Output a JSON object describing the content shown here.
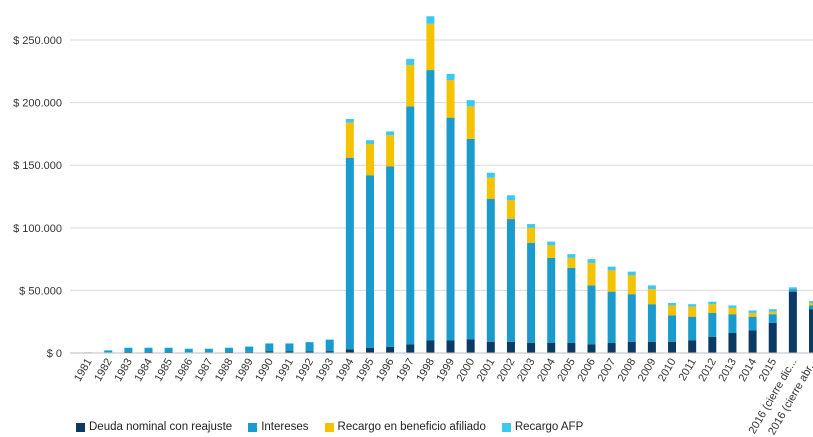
{
  "chart_data": {
    "type": "bar",
    "stacked": true,
    "categories": [
      "1981",
      "1982",
      "1983",
      "1984",
      "1985",
      "1986",
      "1987",
      "1988",
      "1989",
      "1990",
      "1991",
      "1992",
      "1993",
      "1994",
      "1995",
      "1996",
      "1997",
      "1998",
      "1999",
      "2000",
      "2001",
      "2002",
      "2003",
      "2004",
      "2005",
      "2006",
      "2007",
      "2008",
      "2009",
      "2010",
      "2011",
      "2012",
      "2013",
      "2014",
      "2015",
      "2016 (cierre dic...",
      "2016 (cierre abr..."
    ],
    "series": [
      {
        "name": "Deuda nominal con reajuste",
        "color": "#0b3a63",
        "values": [
          0,
          500,
          800,
          800,
          800,
          600,
          600,
          800,
          1000,
          1200,
          1200,
          1300,
          1500,
          3000,
          4000,
          5000,
          7000,
          10000,
          10000,
          11000,
          9000,
          9000,
          8000,
          8000,
          8000,
          7000,
          8000,
          9000,
          9000,
          9000,
          10000,
          13000,
          16000,
          18000,
          24000,
          49000,
          35000
        ]
      },
      {
        "name": "Intereses",
        "color": "#1a9bce",
        "values": [
          500,
          1500,
          3200,
          3200,
          3200,
          2600,
          2600,
          3200,
          4000,
          6300,
          6300,
          7200,
          9000,
          153000,
          138000,
          144000,
          190000,
          216000,
          178000,
          160000,
          114000,
          98000,
          80000,
          68000,
          60000,
          47000,
          41000,
          38000,
          30000,
          21000,
          19000,
          19000,
          15000,
          11000,
          7000,
          2000,
          3000
        ]
      },
      {
        "name": "Recargo en beneficio afiliado",
        "color": "#f5c200",
        "values": [
          0,
          0,
          0,
          0,
          0,
          0,
          0,
          0,
          0,
          0,
          0,
          0,
          0,
          28000,
          25000,
          25000,
          33000,
          37000,
          30000,
          26000,
          17000,
          15000,
          12000,
          10000,
          8000,
          18000,
          17000,
          15000,
          12000,
          8000,
          8000,
          7000,
          5000,
          3000,
          2000,
          0,
          2000
        ]
      },
      {
        "name": "Recargo AFP",
        "color": "#3fc8ef",
        "values": [
          0,
          200,
          300,
          300,
          300,
          300,
          300,
          300,
          300,
          300,
          300,
          300,
          300,
          3000,
          3000,
          3000,
          5000,
          6000,
          5000,
          5000,
          4000,
          4000,
          3000,
          3000,
          3000,
          3000,
          3000,
          3000,
          3000,
          2000,
          2000,
          2000,
          2000,
          2000,
          2000,
          1500,
          1500
        ]
      }
    ],
    "yticks": [
      "$ 0",
      "$ 50.000",
      "$ 100.000",
      "$ 150.000",
      "$ 200.000",
      "$ 250.000"
    ],
    "ylim": [
      0,
      270000
    ],
    "grid": true,
    "legend": "bottom",
    "title": "",
    "xlabel": "",
    "ylabel": ""
  }
}
